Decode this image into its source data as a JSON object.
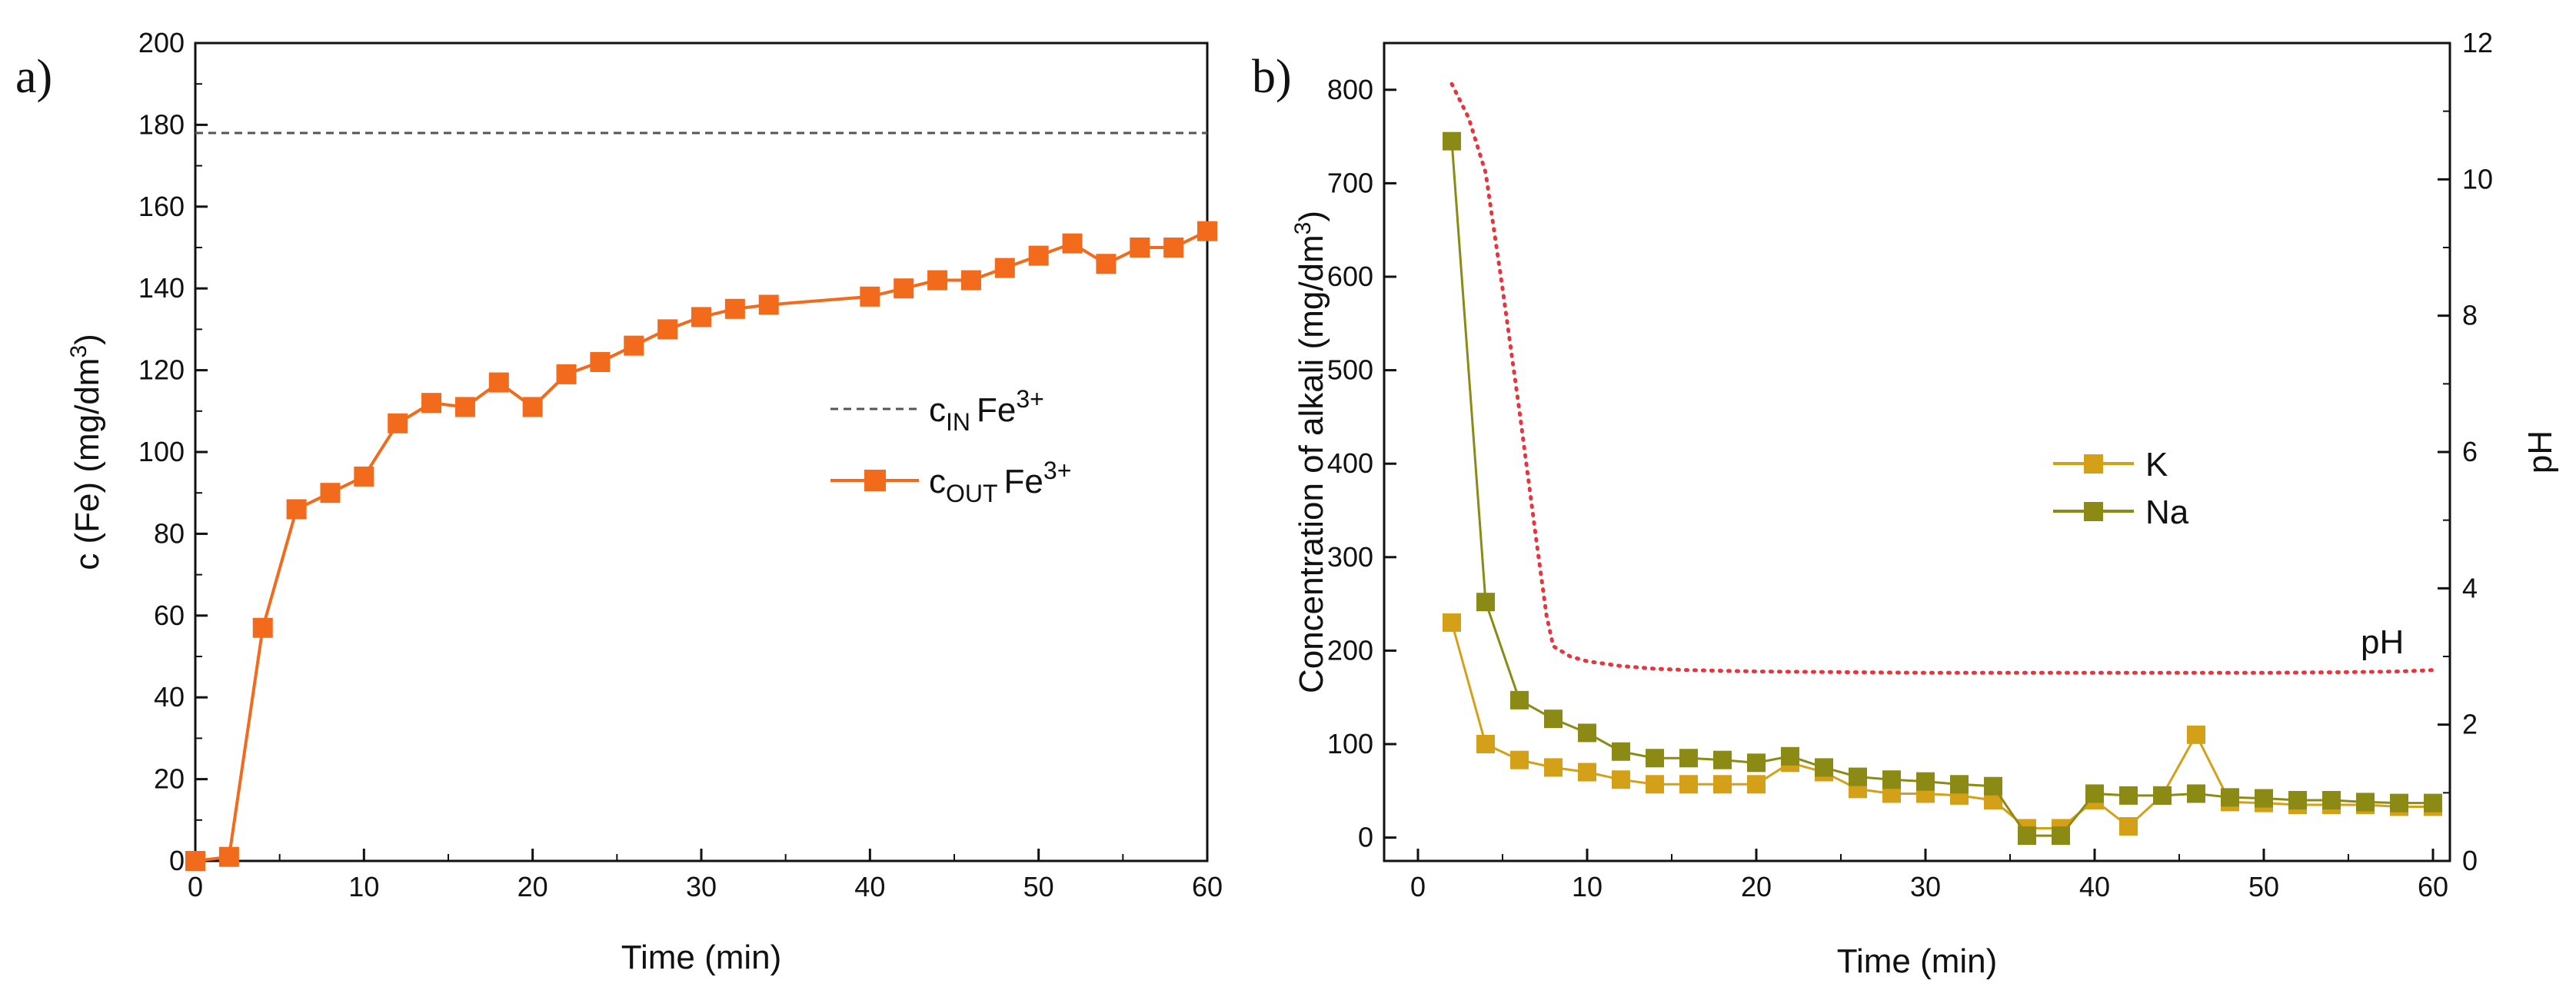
{
  "panel_a": {
    "label": "a)",
    "legend": {
      "cin_main": "c",
      "cin_sub": "IN",
      "cin_species": "Fe",
      "cin_sup": "3+",
      "cout_main": "c",
      "cout_sub": "OUT",
      "cout_species": "Fe",
      "cout_sup": "3+"
    },
    "ylabel_main": "c (Fe) (mg/dm",
    "ylabel_sup": "3",
    "ylabel_close": ")"
  },
  "panel_b": {
    "label": "b)",
    "ylabel_main": "Concentration of alkali (mg/dm",
    "ylabel_sup": "3",
    "ylabel_close": ")",
    "ylabel_right": "pH",
    "ph_annotation": "pH"
  },
  "chart_data": [
    {
      "type": "line",
      "title": "",
      "xlabel": "Time (min)",
      "ylabel": "c (Fe) (mg/dm3)",
      "xlim": [
        0,
        60
      ],
      "ylim": [
        0,
        200
      ],
      "xticks": [
        0,
        10,
        20,
        30,
        40,
        50,
        60
      ],
      "yticks": [
        0,
        20,
        40,
        60,
        80,
        100,
        120,
        140,
        160,
        180,
        200
      ],
      "legend_position": "center-right",
      "series": [
        {
          "name": "c_IN Fe3+",
          "style": "dashed",
          "color": "#555555",
          "x": [
            0,
            60
          ],
          "y": [
            178,
            178
          ]
        },
        {
          "name": "c_OUT Fe3+",
          "style": "line-square",
          "color": "#f26a1b",
          "x": [
            0,
            2,
            4,
            6,
            8,
            10,
            12,
            14,
            16,
            18,
            20,
            22,
            24,
            26,
            28,
            30,
            32,
            34,
            40,
            42,
            44,
            46,
            48,
            50,
            52,
            54,
            56,
            58,
            60
          ],
          "y": [
            0,
            1,
            57,
            86,
            90,
            94,
            107,
            112,
            111,
            117,
            111,
            119,
            122,
            126,
            130,
            133,
            135,
            136,
            138,
            140,
            142,
            142,
            145,
            148,
            151,
            146,
            150,
            150,
            154
          ]
        }
      ]
    },
    {
      "type": "line",
      "title": "",
      "xlabel": "Time (min)",
      "ylabel": "Concentration of alkali (mg/dm3)",
      "y2label": "pH",
      "xlim": [
        -2,
        61
      ],
      "ylim": [
        -25,
        850
      ],
      "y2lim": [
        0,
        12
      ],
      "xticks": [
        0,
        10,
        20,
        30,
        40,
        50,
        60
      ],
      "yticks": [
        0,
        100,
        200,
        300,
        400,
        500,
        600,
        700,
        800
      ],
      "y2ticks": [
        0,
        2,
        4,
        6,
        8,
        10,
        12
      ],
      "legend_position": "center-right",
      "series": [
        {
          "name": "K",
          "style": "line-square",
          "color": "#d4a017",
          "x": [
            2,
            4,
            6,
            8,
            10,
            12,
            14,
            16,
            18,
            20,
            22,
            24,
            26,
            28,
            30,
            32,
            34,
            36,
            38,
            40,
            42,
            44,
            46,
            48,
            50,
            52,
            54,
            56,
            58,
            60
          ],
          "y": [
            230,
            100,
            83,
            75,
            70,
            62,
            57,
            57,
            57,
            57,
            80,
            70,
            52,
            47,
            47,
            45,
            40,
            10,
            10,
            40,
            12,
            45,
            110,
            38,
            37,
            35,
            35,
            35,
            33,
            33
          ]
        },
        {
          "name": "Na",
          "style": "line-square",
          "color": "#8a8a14",
          "x": [
            2,
            4,
            6,
            8,
            10,
            12,
            14,
            16,
            18,
            20,
            22,
            24,
            26,
            28,
            30,
            32,
            34,
            36,
            38,
            40,
            42,
            44,
            46,
            48,
            50,
            52,
            54,
            56,
            58,
            60
          ],
          "y": [
            745,
            252,
            147,
            127,
            112,
            92,
            85,
            85,
            83,
            80,
            87,
            75,
            65,
            62,
            60,
            57,
            55,
            2,
            2,
            47,
            45,
            45,
            47,
            43,
            42,
            40,
            40,
            38,
            37,
            37
          ]
        },
        {
          "name": "pH",
          "axis": "right",
          "style": "dotted",
          "color": "#e8343c",
          "x": [
            2,
            3,
            4,
            5,
            6,
            7,
            7.6,
            8,
            9,
            10,
            12,
            14,
            16,
            18,
            20,
            25,
            30,
            35,
            40,
            45,
            50,
            55,
            58,
            60
          ],
          "y": [
            11.4,
            10.9,
            10.1,
            8.4,
            6.6,
            4.7,
            3.6,
            3.15,
            3.0,
            2.93,
            2.86,
            2.82,
            2.8,
            2.79,
            2.78,
            2.77,
            2.76,
            2.76,
            2.76,
            2.76,
            2.76,
            2.77,
            2.78,
            2.8
          ]
        }
      ]
    }
  ]
}
